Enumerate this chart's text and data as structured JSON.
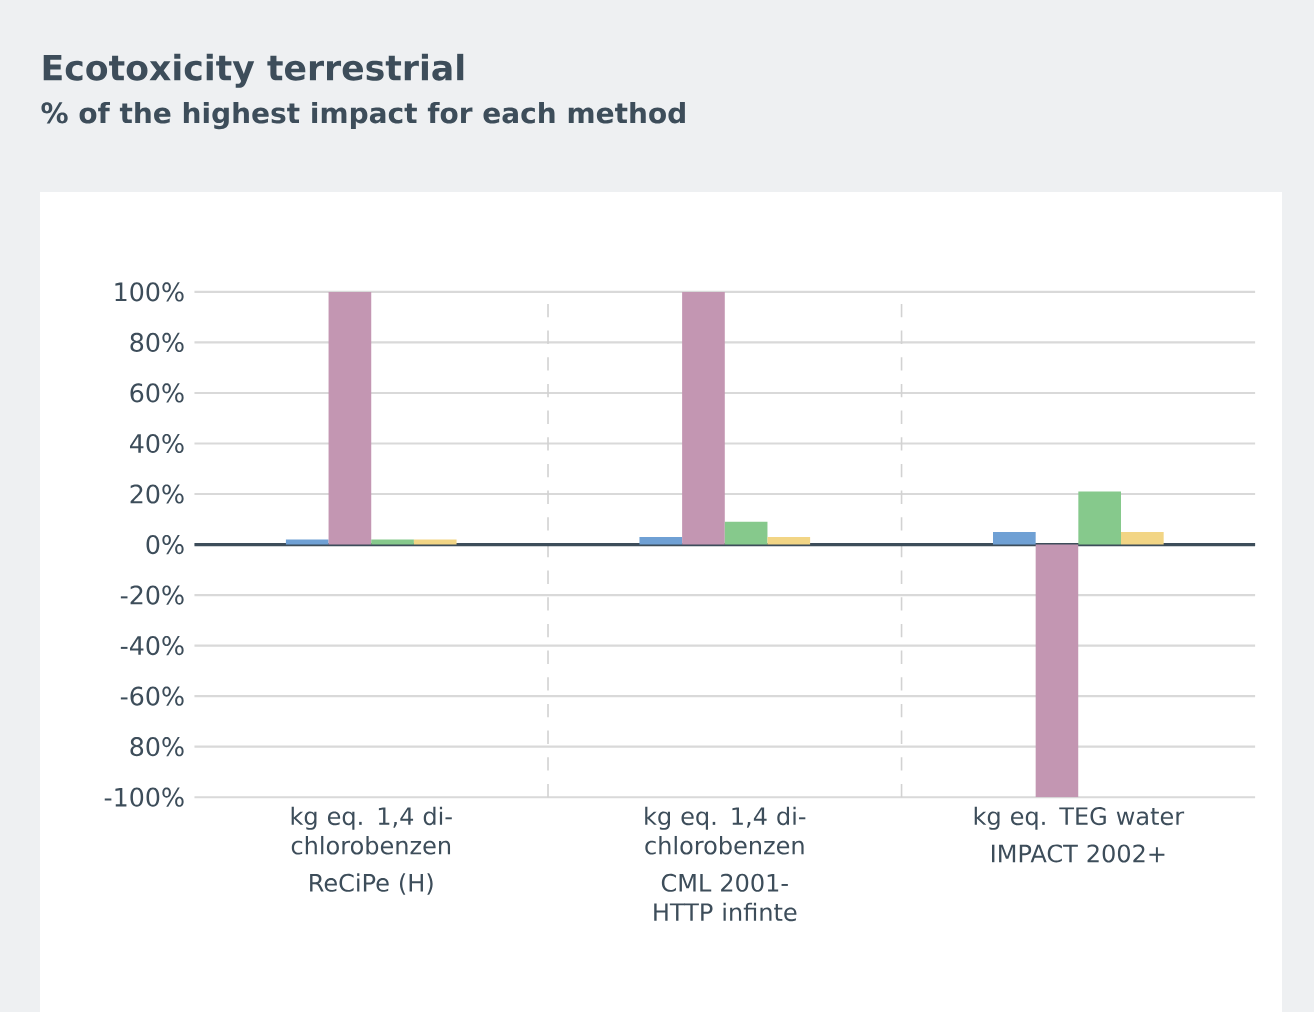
{
  "chart_data": {
    "type": "bar",
    "title": "Ecotoxicity terrestrial",
    "subtitle": "% of the highest impact for each method",
    "categories": [
      "ReCiPe (H)",
      "CML 2001- HTTP infinte",
      "IMPACT 2002+"
    ],
    "annotations": [
      "kg eq. 1,4 di-chlorobenzen",
      "kg eq. 1,4 di-chlorobenzen",
      "kg eq. TEG water"
    ],
    "series": [
      {
        "color": "#6fa0d4",
        "values": [
          2,
          3,
          5
        ]
      },
      {
        "color": "#c396b2",
        "values": [
          100,
          100,
          -100
        ]
      },
      {
        "color": "#86c98c",
        "values": [
          2,
          9,
          21
        ]
      },
      {
        "color": "#f2d585",
        "values": [
          2,
          3,
          5
        ]
      }
    ],
    "ylim": [
      -100,
      100
    ],
    "yticks": [
      {
        "value": 100,
        "label": "100%"
      },
      {
        "value": 80,
        "label": "80%"
      },
      {
        "value": 60,
        "label": "60%"
      },
      {
        "value": 40,
        "label": "40%"
      },
      {
        "value": 20,
        "label": "20%"
      },
      {
        "value": 0,
        "label": "0%"
      },
      {
        "value": -20,
        "label": "-20%"
      },
      {
        "value": -40,
        "label": "-40%"
      },
      {
        "value": -60,
        "label": "-60%"
      },
      {
        "value": -80,
        "label": "80%"
      },
      {
        "value": -100,
        "label": "-100%"
      }
    ],
    "grid": true
  }
}
